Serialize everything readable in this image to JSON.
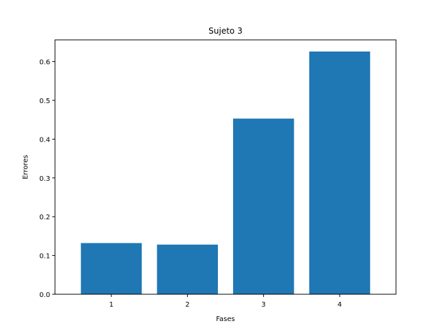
{
  "chart_data": {
    "type": "bar",
    "title": "Sujeto 3",
    "xlabel": "Fases",
    "ylabel": "Errores",
    "categories": [
      "1",
      "2",
      "3",
      "4"
    ],
    "values": [
      0.132,
      0.128,
      0.453,
      0.626
    ],
    "ylim": [
      0,
      0.656
    ],
    "yticks": [
      0.0,
      0.1,
      0.2,
      0.3,
      0.4,
      0.5,
      0.6
    ],
    "ytick_labels": [
      "0.0",
      "0.1",
      "0.2",
      "0.3",
      "0.4",
      "0.5",
      "0.6"
    ],
    "bar_color": "#1f77b4",
    "grid": false
  }
}
